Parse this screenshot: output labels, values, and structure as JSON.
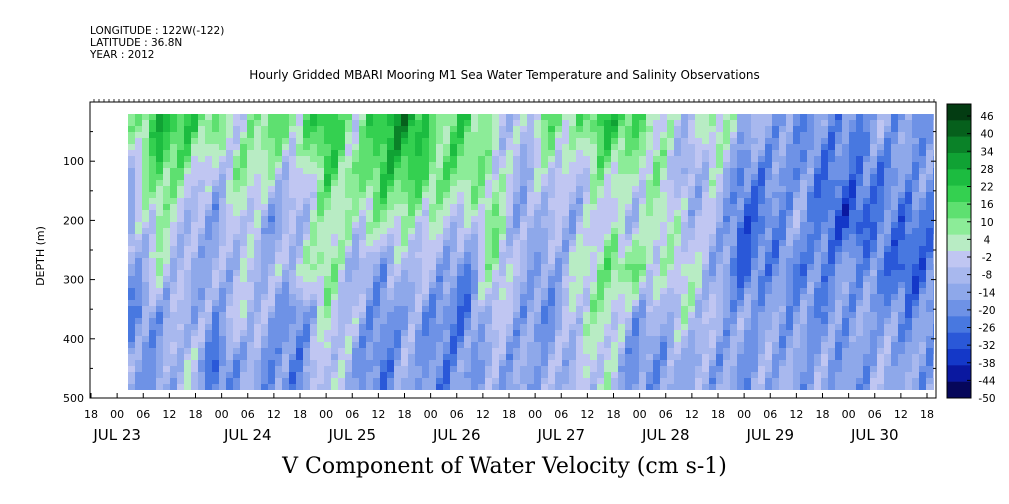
{
  "meta": {
    "longitude": "LONGITUDE : 122W(-122)",
    "latitude": "LATITUDE : 36.8N",
    "year": "YEAR : 2012"
  },
  "chart_data": {
    "type": "heatmap",
    "title": "Hourly Gridded MBARI Mooring M1 Sea Water Temperature and Salinity Observations",
    "xlabel": "V Component of Water Velocity (cm s-1)",
    "ylabel": "DEPTH (m)",
    "ylim": [
      500,
      0
    ],
    "y_ticks": [
      100,
      200,
      300,
      400,
      500
    ],
    "x_hour_ticks": [
      "18",
      "00",
      "06",
      "12",
      "18",
      "00",
      "06",
      "12",
      "18",
      "00",
      "06",
      "12",
      "18",
      "00",
      "06",
      "12",
      "18",
      "00",
      "06",
      "12",
      "18",
      "00",
      "06",
      "12",
      "18",
      "00",
      "06",
      "12",
      "18",
      "00",
      "06",
      "12",
      "18"
    ],
    "x_date_labels": [
      "JUL 23",
      "JUL 24",
      "JUL 25",
      "JUL 26",
      "JUL 27",
      "JUL 28",
      "JUL 29",
      "JUL 30"
    ],
    "colorbar": {
      "labels": [
        "46",
        "40",
        "34",
        "28",
        "22",
        "16",
        "10",
        "4",
        "-2",
        "-8",
        "-14",
        "-20",
        "-26",
        "-32",
        "-38",
        "-44",
        "-50"
      ]
    },
    "depth_grid": [
      40,
      120,
      200,
      280,
      360,
      440
    ],
    "values": [
      [
        8,
        30,
        25,
        14,
        2,
        22,
        12,
        32,
        6,
        30,
        40,
        12,
        24,
        4,
        -6,
        18,
        10,
        28,
        22,
        6,
        -4,
        14,
        -6,
        -10,
        -18,
        -14,
        -20,
        -8,
        -16,
        -12
      ],
      [
        -2,
        22,
        8,
        -6,
        14,
        4,
        -4,
        20,
        12,
        26,
        24,
        18,
        16,
        10,
        -8,
        4,
        -4,
        12,
        6,
        10,
        -12,
        4,
        -20,
        -16,
        -14,
        -24,
        -20,
        -22,
        -10,
        -18
      ],
      [
        -10,
        10,
        -4,
        -12,
        4,
        -14,
        -6,
        10,
        4,
        12,
        6,
        4,
        -4,
        16,
        -12,
        -4,
        -8,
        6,
        -6,
        12,
        -4,
        -2,
        -28,
        -20,
        -8,
        -26,
        -32,
        -18,
        -24,
        -20
      ],
      [
        -14,
        6,
        -10,
        -8,
        -2,
        -6,
        2,
        16,
        -8,
        -12,
        -2,
        -6,
        -20,
        12,
        -6,
        -14,
        4,
        14,
        18,
        2,
        8,
        -8,
        -26,
        -16,
        -20,
        -18,
        -12,
        -22,
        -30,
        -16
      ],
      [
        -18,
        -12,
        -4,
        -14,
        4,
        -10,
        -20,
        6,
        -4,
        -18,
        -10,
        -16,
        -24,
        2,
        -10,
        -18,
        2,
        10,
        -10,
        -8,
        4,
        -6,
        -12,
        -10,
        -14,
        -18,
        -10,
        -12,
        -18,
        -14
      ],
      [
        -12,
        -14,
        2,
        -24,
        -8,
        -16,
        -18,
        4,
        -10,
        -22,
        -6,
        -20,
        -14,
        -8,
        -12,
        -8,
        -4,
        6,
        -16,
        -14,
        -8,
        -10,
        -14,
        -8,
        -12,
        -10,
        -16,
        -6,
        -12,
        -10
      ]
    ]
  },
  "colors": {
    "palette": [
      "#06075a",
      "#0a18a0",
      "#1438c8",
      "#2a58d8",
      "#4878e0",
      "#6e92e6",
      "#8ea8ea",
      "#a8b8ee",
      "#c0c6f2",
      "#b8ecc4",
      "#8cec98",
      "#5ee070",
      "#34d050",
      "#1cbc40",
      "#10a234",
      "#0a8228",
      "#06601c",
      "#033c12"
    ]
  }
}
